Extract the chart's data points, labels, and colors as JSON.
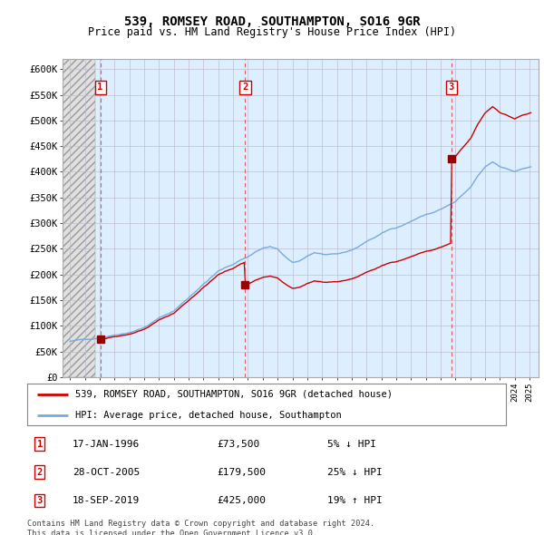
{
  "title": "539, ROMSEY ROAD, SOUTHAMPTON, SO16 9GR",
  "subtitle": "Price paid vs. HM Land Registry's House Price Index (HPI)",
  "legend_property": "539, ROMSEY ROAD, SOUTHAMPTON, SO16 9GR (detached house)",
  "legend_hpi": "HPI: Average price, detached house, Southampton",
  "footer": "Contains HM Land Registry data © Crown copyright and database right 2024.\nThis data is licensed under the Open Government Licence v3.0.",
  "ylim": [
    0,
    620000
  ],
  "yticks": [
    0,
    50000,
    100000,
    150000,
    200000,
    250000,
    300000,
    350000,
    400000,
    450000,
    500000,
    550000,
    600000
  ],
  "ytick_labels": [
    "£0",
    "£50K",
    "£100K",
    "£150K",
    "£200K",
    "£250K",
    "£300K",
    "£350K",
    "£400K",
    "£450K",
    "£500K",
    "£550K",
    "£600K"
  ],
  "transactions": [
    {
      "num": 1,
      "year": 1996.04,
      "price": 73500
    },
    {
      "num": 2,
      "year": 2005.82,
      "price": 179500
    },
    {
      "num": 3,
      "year": 2019.71,
      "price": 425000
    }
  ],
  "table_rows": [
    {
      "num": "1",
      "date": "17-JAN-1996",
      "price": "£73,500",
      "hpi": "5% ↓ HPI"
    },
    {
      "num": "2",
      "date": "28-OCT-2005",
      "price": "£179,500",
      "hpi": "25% ↓ HPI"
    },
    {
      "num": "3",
      "date": "18-SEP-2019",
      "price": "£425,000",
      "hpi": "19% ↑ HPI"
    }
  ],
  "chart_bg": "#ddeeff",
  "grid_color": "#bbbbcc",
  "red_line_color": "#cc0000",
  "blue_line_color": "#7aaadd",
  "marker_color": "#990000",
  "dashed_color": "#dd4444",
  "number_box_color": "#cc0000",
  "hatch_bg": "#e8e8e8"
}
